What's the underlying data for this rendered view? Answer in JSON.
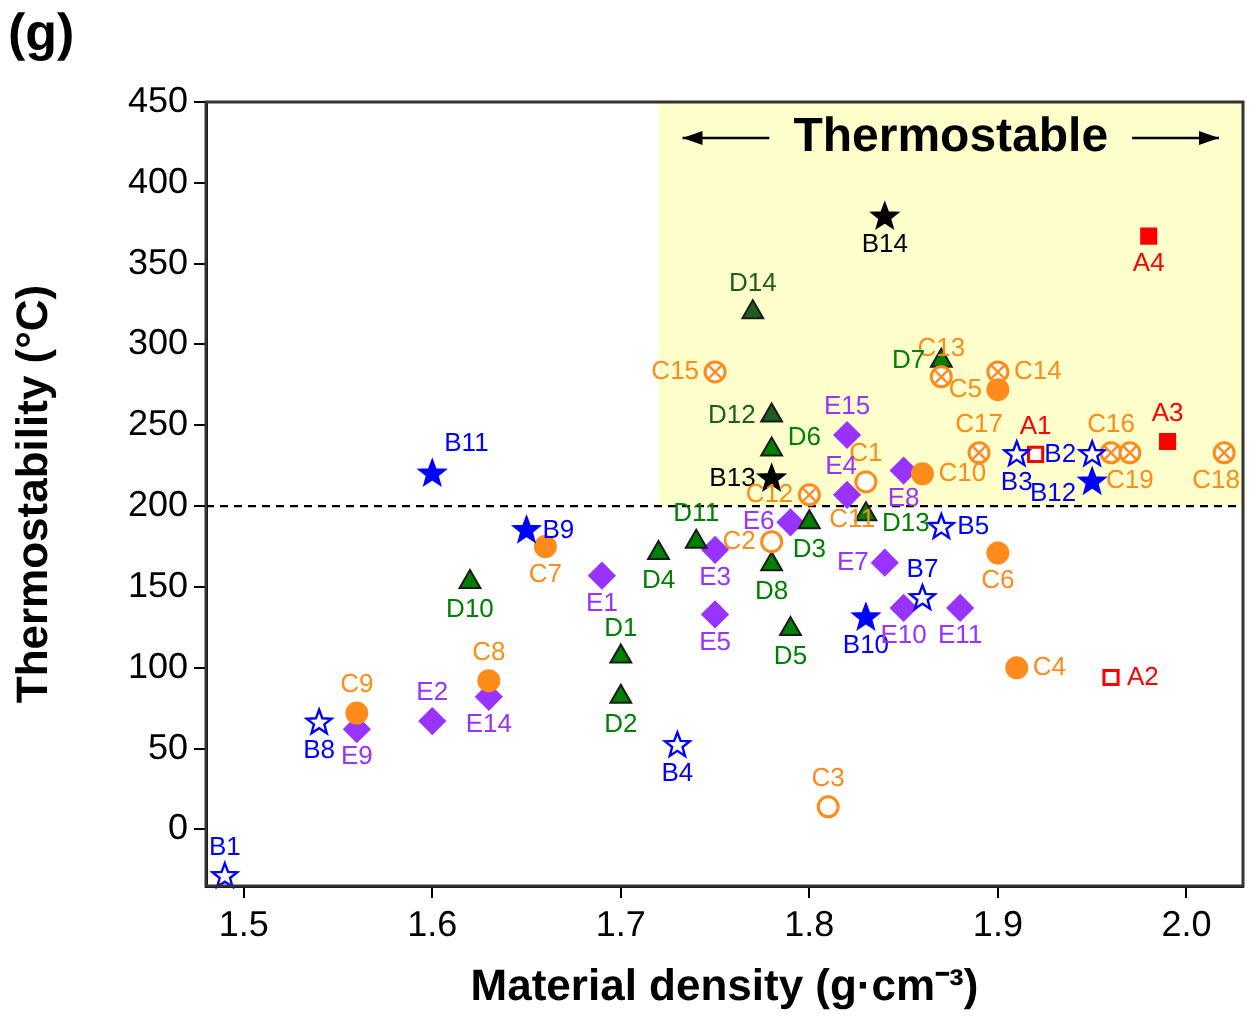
{
  "chart_data": {
    "type": "scatter",
    "xlabel": "Material density (g·cm⁻³)",
    "ylabel": "Thermostability (°C)",
    "xlim": [
      1.48,
      2.03
    ],
    "xticks": [
      1.5,
      1.6,
      1.7,
      1.8,
      1.9,
      {
        "value": 2,
        "label": "2.0"
      }
    ],
    "ylim": [
      -35,
      450
    ],
    "yticks": [
      0,
      50,
      100,
      150,
      200,
      250,
      300,
      350,
      400,
      450
    ],
    "grid": false,
    "legend": false,
    "ref_lines": [
      {
        "axis": "y",
        "value": 200,
        "line_style": "dashed",
        "color": "#000000"
      }
    ],
    "bands": [
      {
        "axis": "x",
        "from": 1.72,
        "to": 2.03,
        "label": "Thermostable",
        "color": "#ffffcc"
      }
    ],
    "series": [
      {
        "color": "#ff0000",
        "marker": "square",
        "x": [
          1.99,
          1.98
        ],
        "values": [
          240,
          367
        ]
      },
      {
        "color": "#ff0000",
        "marker": "square",
        "x": [
          1.92,
          1.96
        ],
        "values": [
          232,
          94
        ]
      },
      {
        "color": "#0000ff",
        "marker": "star",
        "x": [
          1.65,
          1.83,
          1.6,
          1.95
        ],
        "values": [
          185,
          131,
          220,
          215
        ]
      },
      {
        "color": "#0000ff",
        "marker": "star",
        "x": [
          1.49,
          1.95,
          1.91,
          1.73,
          1.87,
          1.86,
          1.54
        ],
        "values": [
          -29,
          232,
          232,
          52,
          187,
          143,
          66
        ]
      },
      {
        "color": "#000000",
        "marker": "star",
        "x": [
          1.78,
          1.84
        ],
        "values": [
          217,
          379
        ]
      },
      {
        "color": "#ff8c1a",
        "marker": "circle",
        "x": [
          1.91,
          1.9,
          1.9,
          1.66,
          1.63,
          1.56,
          1.86
        ],
        "values": [
          100,
          272,
          171,
          175,
          92,
          72,
          220
        ]
      },
      {
        "color": "#ff8c1a",
        "marker": "circle",
        "x": [
          1.83,
          1.78,
          1.81
        ],
        "values": [
          215,
          178,
          14
        ]
      },
      {
        "color": "#ff8c1a",
        "marker": "circle",
        "x": [
          1.8,
          1.87,
          1.9,
          1.75,
          1.96,
          1.89,
          2.02,
          1.97
        ],
        "values": [
          207,
          280,
          283,
          283,
          233,
          233,
          233,
          233
        ]
      },
      {
        "color": "#008000",
        "marker": "triangle",
        "x": [
          1.7,
          1.7,
          1.8,
          1.72,
          1.79,
          1.78,
          1.87,
          1.78,
          1.62,
          1.74,
          1.83
        ],
        "values": [
          107,
          82,
          190,
          171,
          124,
          235,
          290,
          164,
          153,
          178,
          195
        ]
      },
      {
        "color": "#1f5c1f",
        "marker": "triangle",
        "x": [
          1.78,
          1.77
        ],
        "values": [
          256,
          320
        ]
      },
      {
        "color": "#9933ff",
        "marker": "diamond",
        "x": [
          1.69,
          1.6,
          1.75,
          1.82,
          1.75,
          1.79,
          1.84,
          1.85,
          1.56,
          1.85,
          1.88,
          1.63,
          1.82
        ],
        "values": [
          157,
          67,
          173,
          207,
          133,
          190,
          165,
          222,
          62,
          137,
          137,
          82,
          244
        ]
      }
    ],
    "annotations": [
      "(g)",
      {
        "text": "A3",
        "x": 1.99,
        "y": 240
      },
      {
        "text": "A4",
        "x": 1.98,
        "y": 367
      },
      {
        "text": "A1",
        "x": 1.92,
        "y": 232
      },
      {
        "text": "A2",
        "x": 1.96,
        "y": 94
      },
      {
        "text": "B9",
        "x": 1.65,
        "y": 185
      },
      {
        "text": "B10",
        "x": 1.83,
        "y": 131
      },
      {
        "text": "B11",
        "x": 1.6,
        "y": 220
      },
      {
        "text": "B12",
        "x": 1.95,
        "y": 215
      },
      {
        "text": "B1",
        "x": 1.49,
        "y": -29
      },
      {
        "text": "B2",
        "x": 1.95,
        "y": 232
      },
      {
        "text": "B3",
        "x": 1.91,
        "y": 232
      },
      {
        "text": "B4",
        "x": 1.73,
        "y": 52
      },
      {
        "text": "B5",
        "x": 1.87,
        "y": 187
      },
      {
        "text": "B7",
        "x": 1.86,
        "y": 143
      },
      {
        "text": "B8",
        "x": 1.54,
        "y": 66
      },
      {
        "text": "B13",
        "x": 1.78,
        "y": 217
      },
      {
        "text": "B14",
        "x": 1.84,
        "y": 379
      },
      {
        "text": "C4",
        "x": 1.91,
        "y": 100
      },
      {
        "text": "C5",
        "x": 1.9,
        "y": 272
      },
      {
        "text": "C6",
        "x": 1.9,
        "y": 171
      },
      {
        "text": "C7",
        "x": 1.66,
        "y": 175
      },
      {
        "text": "C8",
        "x": 1.63,
        "y": 92
      },
      {
        "text": "C9",
        "x": 1.56,
        "y": 72
      },
      {
        "text": "C10",
        "x": 1.86,
        "y": 220
      },
      {
        "text": "C1",
        "x": 1.83,
        "y": 215
      },
      {
        "text": "C2",
        "x": 1.78,
        "y": 178
      },
      {
        "text": "C3",
        "x": 1.81,
        "y": 14
      },
      {
        "text": "C11",
        "x": 1.8,
        "y": 205
      },
      {
        "text": "C12",
        "x": 1.8,
        "y": 207
      },
      {
        "text": "C13",
        "x": 1.87,
        "y": 280
      },
      {
        "text": "C14",
        "x": 1.9,
        "y": 283
      },
      {
        "text": "C15",
        "x": 1.75,
        "y": 283
      },
      {
        "text": "C16",
        "x": 1.96,
        "y": 233
      },
      {
        "text": "C17",
        "x": 1.89,
        "y": 233
      },
      {
        "text": "C18",
        "x": 2.02,
        "y": 233
      },
      {
        "text": "C19",
        "x": 1.97,
        "y": 233
      },
      {
        "text": "D1",
        "x": 1.7,
        "y": 107
      },
      {
        "text": "D2",
        "x": 1.7,
        "y": 82
      },
      {
        "text": "D3",
        "x": 1.8,
        "y": 190
      },
      {
        "text": "D4",
        "x": 1.72,
        "y": 171
      },
      {
        "text": "D5",
        "x": 1.79,
        "y": 124
      },
      {
        "text": "D6",
        "x": 1.78,
        "y": 235
      },
      {
        "text": "D7",
        "x": 1.87,
        "y": 290
      },
      {
        "text": "D8",
        "x": 1.78,
        "y": 164
      },
      {
        "text": "D10",
        "x": 1.62,
        "y": 153
      },
      {
        "text": "D11",
        "x": 1.74,
        "y": 178
      },
      {
        "text": "D13",
        "x": 1.83,
        "y": 195
      },
      {
        "text": "D12",
        "x": 1.78,
        "y": 256
      },
      {
        "text": "D14",
        "x": 1.77,
        "y": 320
      },
      {
        "text": "E1",
        "x": 1.69,
        "y": 157
      },
      {
        "text": "E2",
        "x": 1.6,
        "y": 67
      },
      {
        "text": "E3",
        "x": 1.75,
        "y": 173
      },
      {
        "text": "E4",
        "x": 1.82,
        "y": 207
      },
      {
        "text": "E5",
        "x": 1.75,
        "y": 133
      },
      {
        "text": "E6",
        "x": 1.79,
        "y": 190
      },
      {
        "text": "E7",
        "x": 1.84,
        "y": 165
      },
      {
        "text": "E8",
        "x": 1.85,
        "y": 222
      },
      {
        "text": "E9",
        "x": 1.56,
        "y": 62
      },
      {
        "text": "E10",
        "x": 1.85,
        "y": 137
      },
      {
        "text": "E11",
        "x": 1.88,
        "y": 137
      },
      {
        "text": "E14",
        "x": 1.63,
        "y": 82
      },
      {
        "text": "E15",
        "x": 1.82,
        "y": 244
      }
    ]
  }
}
